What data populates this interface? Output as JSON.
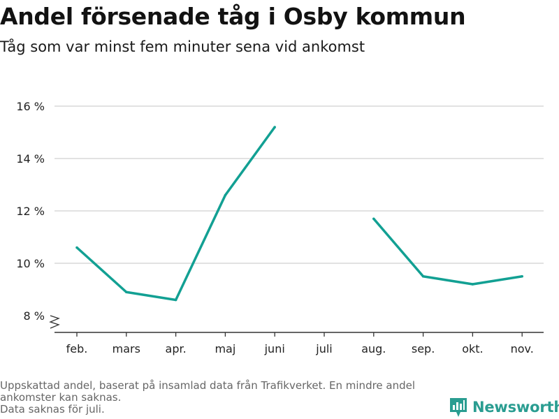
{
  "header": {
    "title": "Andel försenade tåg i Osby kommun",
    "subtitle": "Tåg som var minst fem minuter sena vid ankomst"
  },
  "footnote": {
    "line1": "Uppskattad andel, baserat på insamlad data från Trafikverket. En mindre andel ankomster kan saknas.",
    "line2": "Data saknas för juli."
  },
  "brand": {
    "name": "Newsworthy",
    "color": "#2a9d91"
  },
  "colors": {
    "line": "#12a093",
    "grid": "#d9d9d9",
    "axis": "#333333",
    "text": "#222222"
  },
  "chart_data": {
    "type": "line",
    "categories": [
      "feb.",
      "mars",
      "apr.",
      "maj",
      "juni",
      "juli",
      "aug.",
      "sep.",
      "okt.",
      "nov."
    ],
    "series": [
      {
        "values": [
          10.6,
          8.9,
          8.6,
          12.6,
          15.2,
          null,
          11.7,
          9.5,
          9.2,
          9.5
        ]
      }
    ],
    "yticks": [
      8,
      10,
      12,
      14,
      16
    ],
    "ytick_labels": [
      "8 %",
      "10 %",
      "12 %",
      "14 %",
      "16 %"
    ],
    "ylim": [
      8,
      16
    ],
    "y_axis_break": true,
    "grid": true,
    "unit": "%"
  }
}
